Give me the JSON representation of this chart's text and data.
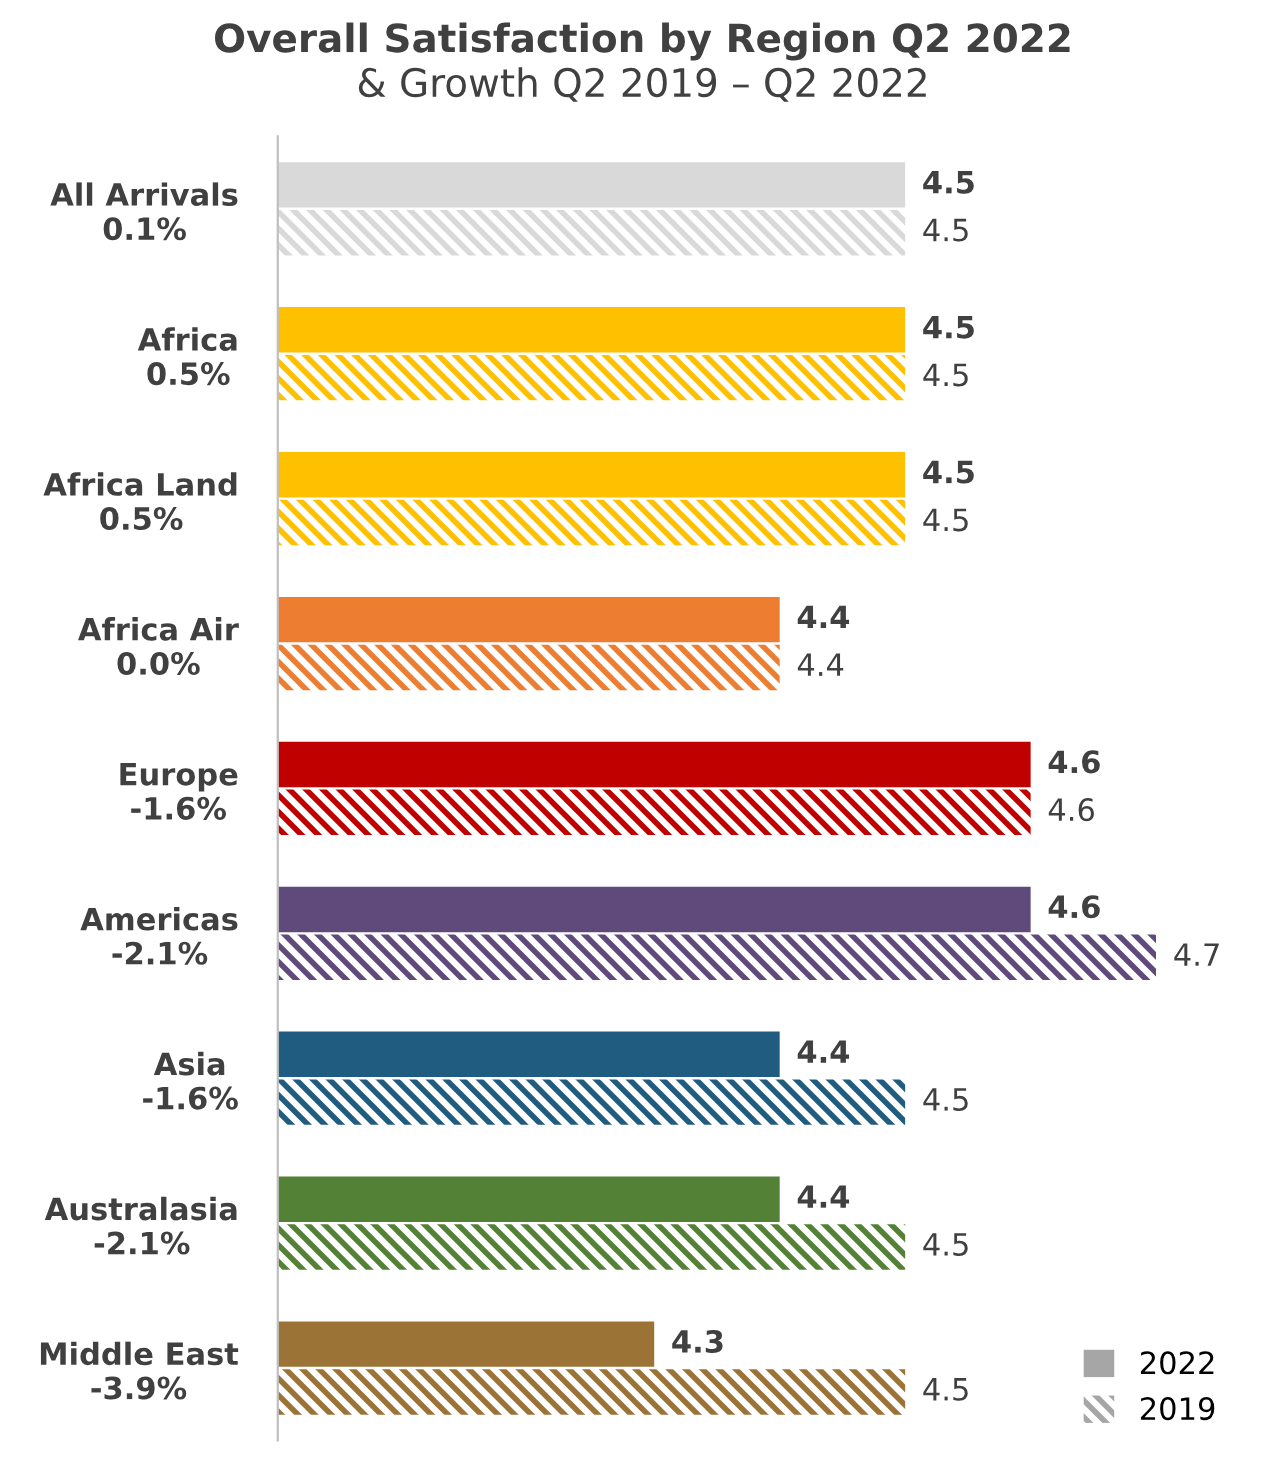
{
  "chart_data": {
    "type": "bar",
    "orientation": "horizontal",
    "xlim": [
      4.0,
      4.7
    ],
    "tick_labels": "y",
    "data_labels": true,
    "title": "Overall Satisfaction by Region Q2 2022",
    "subtitle": "& Growth Q2 2019 – Q2 2022",
    "categories": [
      "All Arrivals\n0.1%",
      "Africa\n0.5%",
      "Africa Land\n0.5%",
      "Africa Air\n0.0%",
      "Europe\n-1.6%",
      "Americas\n-2.1%",
      "Asia\n-1.6%",
      "Australasia\n-2.1%",
      "Middle East\n-3.9%"
    ],
    "series": [
      {
        "name": "2022",
        "color": "#a6a6a6",
        "colors": [
          "#d9d9d9",
          "#ffc000",
          "#ffc000",
          "#ed7d31",
          "#c00000",
          "#604a7b",
          "#1f5c7f",
          "#538135",
          "#9c7336"
        ],
        "values": [
          4.5,
          4.5,
          4.5,
          4.4,
          4.6,
          4.6,
          4.4,
          4.4,
          4.3
        ]
      },
      {
        "name": "2019",
        "color": "#a6a6a6",
        "colors": [
          "#d9d9d9",
          "#ffc000",
          "#ffc000",
          "#ed7d31",
          "#c00000",
          "#604a7b",
          "#1f5c7f",
          "#538135",
          "#9c7336"
        ],
        "values": [
          4.5,
          4.5,
          4.5,
          4.4,
          4.6,
          4.7,
          4.5,
          4.5,
          4.5
        ]
      }
    ],
    "legend": "bottom right",
    "grid": false
  }
}
